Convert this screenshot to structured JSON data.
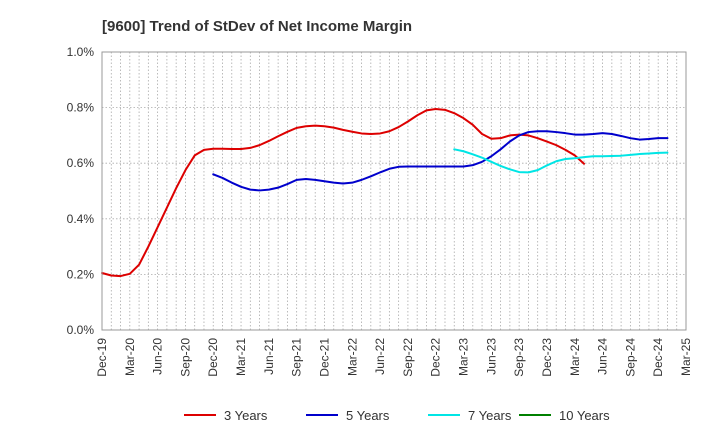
{
  "chart_data": {
    "type": "line",
    "title": "[9600]  Trend of StDev of Net Income Margin",
    "xlabel": "",
    "ylabel": "",
    "x_ticks": [
      "Dec-19",
      "Mar-20",
      "Jun-20",
      "Sep-20",
      "Dec-20",
      "Mar-21",
      "Jun-21",
      "Sep-21",
      "Dec-21",
      "Mar-22",
      "Jun-22",
      "Sep-22",
      "Dec-22",
      "Mar-23",
      "Jun-23",
      "Sep-23",
      "Dec-23",
      "Mar-24",
      "Jun-24",
      "Sep-24",
      "Dec-24",
      "Mar-25"
    ],
    "ylim": [
      0,
      1.0
    ],
    "y_ticks": [
      0,
      0.2,
      0.4,
      0.6,
      0.8,
      1.0
    ],
    "y_tick_labels": [
      "0.0%",
      "0.2%",
      "0.4%",
      "0.6%",
      "0.8%",
      "1.0%"
    ],
    "grid": true,
    "legend_position": "bottom",
    "series": [
      {
        "name": "3 Years",
        "color": "#dd0000",
        "values": [
          0.205,
          0.196,
          0.194,
          0.202,
          0.235,
          0.3,
          0.37,
          0.44,
          0.51,
          0.575,
          0.628,
          0.648,
          0.652,
          0.652,
          0.651,
          0.651,
          0.655,
          0.665,
          0.68,
          0.697,
          0.713,
          0.727,
          0.733,
          0.735,
          0.733,
          0.728,
          0.72,
          0.713,
          0.707,
          0.705,
          0.707,
          0.715,
          0.73,
          0.75,
          0.772,
          0.79,
          0.795,
          0.792,
          0.78,
          0.762,
          0.738,
          0.705,
          0.688,
          0.69,
          0.7,
          0.703,
          0.7,
          0.69,
          0.678,
          0.665,
          0.648,
          0.628,
          0.598
        ]
      },
      {
        "name": "5 Years",
        "color": "#0000cc",
        "values": [
          null,
          null,
          null,
          null,
          null,
          null,
          null,
          null,
          null,
          null,
          null,
          null,
          0.56,
          0.547,
          0.53,
          0.515,
          0.505,
          0.502,
          0.505,
          0.512,
          0.525,
          0.54,
          0.543,
          0.54,
          0.535,
          0.53,
          0.527,
          0.53,
          0.54,
          0.553,
          0.567,
          0.58,
          0.587,
          0.588,
          0.588,
          0.588,
          0.588,
          0.588,
          0.588,
          0.588,
          0.593,
          0.605,
          0.625,
          0.65,
          0.678,
          0.7,
          0.712,
          0.715,
          0.715,
          0.712,
          0.708,
          0.703,
          0.703,
          0.705,
          0.708,
          0.705,
          0.698,
          0.69,
          0.685,
          0.687,
          0.69,
          0.69
        ]
      },
      {
        "name": "7 Years",
        "color": "#00e5e5",
        "values": [
          null,
          null,
          null,
          null,
          null,
          null,
          null,
          null,
          null,
          null,
          null,
          null,
          null,
          null,
          null,
          null,
          null,
          null,
          null,
          null,
          null,
          null,
          null,
          null,
          null,
          null,
          null,
          null,
          null,
          null,
          null,
          null,
          null,
          null,
          null,
          null,
          null,
          null,
          0.65,
          0.643,
          0.632,
          0.62,
          0.605,
          0.59,
          0.578,
          0.568,
          0.567,
          0.575,
          0.592,
          0.607,
          0.615,
          0.618,
          0.622,
          0.625,
          0.625,
          0.626,
          0.627,
          0.63,
          0.633,
          0.635,
          0.637,
          0.638
        ]
      },
      {
        "name": "10 Years",
        "color": "#008000",
        "values": []
      }
    ]
  }
}
